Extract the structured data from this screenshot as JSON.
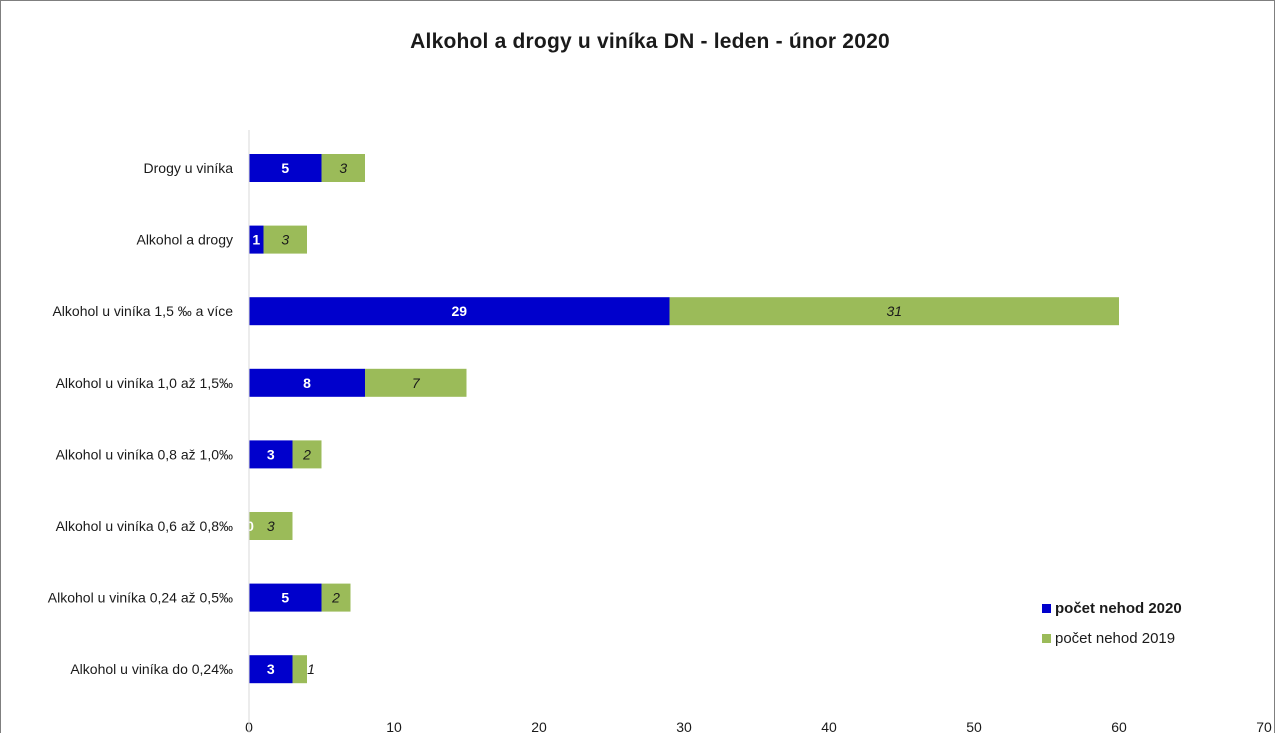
{
  "chart_data": {
    "type": "bar",
    "orientation": "horizontal",
    "stacked": true,
    "title": "Alkohol a drogy u viníka DN - leden  - únor 2020",
    "categories": [
      "Drogy u viníka",
      "Alkohol a drogy",
      "Alkohol u viníka 1,5 ‰ a více",
      "Alkohol u viníka 1,0 až 1,5‰",
      "Alkohol u viníka  0,8 až 1,0‰",
      "Alkohol u viníka  0,6 až 0,8‰",
      "Alkohol u viníka  0,24 až 0,5‰",
      "Alkohol u viníka do 0,24‰"
    ],
    "series": [
      {
        "name": "počet nehod 2020",
        "color": "#0000cc",
        "values": [
          5,
          1,
          29,
          8,
          3,
          0,
          5,
          3
        ],
        "labels": [
          "5",
          "1",
          "29",
          "8",
          "3",
          "0",
          "5",
          "3"
        ]
      },
      {
        "name": "počet nehod 2019",
        "color": "#9bbb59",
        "values": [
          3,
          3,
          31,
          7,
          2,
          3,
          2,
          1
        ],
        "labels": [
          "3",
          "3",
          "31",
          "7",
          "2",
          "3",
          "2",
          "1"
        ]
      }
    ],
    "xlim": [
      0,
      70
    ],
    "xticks": [
      0,
      10,
      20,
      30,
      40,
      50,
      60,
      70
    ],
    "xtick_labels": [
      "0",
      "10",
      "20",
      "30",
      "40",
      "50",
      "60",
      "70"
    ],
    "grid": false,
    "legend_position": "bottom-right"
  }
}
